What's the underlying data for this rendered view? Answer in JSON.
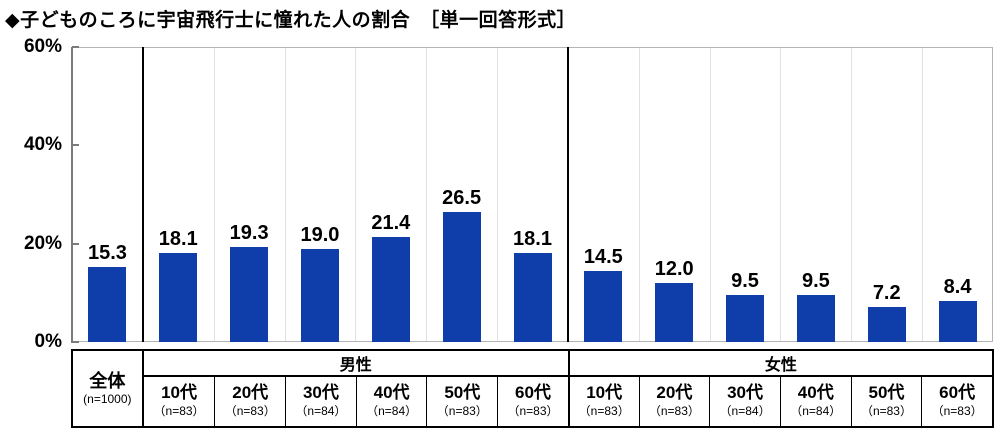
{
  "title": "◆子どものころに宇宙飛行士に憧れた人の割合　［単一回答形式］",
  "colors": {
    "bar": "#0f3daa",
    "axis": "#7a7a7a",
    "grid": "#e2e2e2",
    "plot_border": "#b4b4b4",
    "table_border": "#000000",
    "text": "#000000"
  },
  "chart_data": {
    "type": "bar",
    "title": "子どものころに宇宙飛行士に憧れた人の割合",
    "format_note": "単一回答形式",
    "ylabel": "%",
    "ylim": [
      0,
      60
    ],
    "grid": "off",
    "legend": "none",
    "yticks": [
      {
        "label": "60%",
        "value": 60
      },
      {
        "label": "40%",
        "value": 40
      },
      {
        "label": "20%",
        "value": 20
      },
      {
        "label": "0%",
        "value": 0
      }
    ],
    "groups": [
      {
        "name": "全体",
        "columns": [
          {
            "label": "全体",
            "n_label": "(n=1000)",
            "value": 15.3,
            "value_label": "15.3"
          }
        ]
      },
      {
        "name": "男性",
        "columns": [
          {
            "label": "10代",
            "n_label": "（n=83）",
            "value": 18.1,
            "value_label": "18.1"
          },
          {
            "label": "20代",
            "n_label": "（n=83）",
            "value": 19.3,
            "value_label": "19.3"
          },
          {
            "label": "30代",
            "n_label": "（n=84）",
            "value": 19.0,
            "value_label": "19.0"
          },
          {
            "label": "40代",
            "n_label": "（n=84）",
            "value": 21.4,
            "value_label": "21.4"
          },
          {
            "label": "50代",
            "n_label": "（n=83）",
            "value": 26.5,
            "value_label": "26.5"
          },
          {
            "label": "60代",
            "n_label": "（n=83）",
            "value": 18.1,
            "value_label": "18.1"
          }
        ]
      },
      {
        "name": "女性",
        "columns": [
          {
            "label": "10代",
            "n_label": "（n=83）",
            "value": 14.5,
            "value_label": "14.5"
          },
          {
            "label": "20代",
            "n_label": "（n=83）",
            "value": 12.0,
            "value_label": "12.0"
          },
          {
            "label": "30代",
            "n_label": "（n=84）",
            "value": 9.5,
            "value_label": "9.5"
          },
          {
            "label": "40代",
            "n_label": "（n=84）",
            "value": 9.5,
            "value_label": "9.5"
          },
          {
            "label": "50代",
            "n_label": "（n=83）",
            "value": 7.2,
            "value_label": "7.2"
          },
          {
            "label": "60代",
            "n_label": "（n=83）",
            "value": 8.4,
            "value_label": "8.4"
          }
        ]
      }
    ]
  }
}
